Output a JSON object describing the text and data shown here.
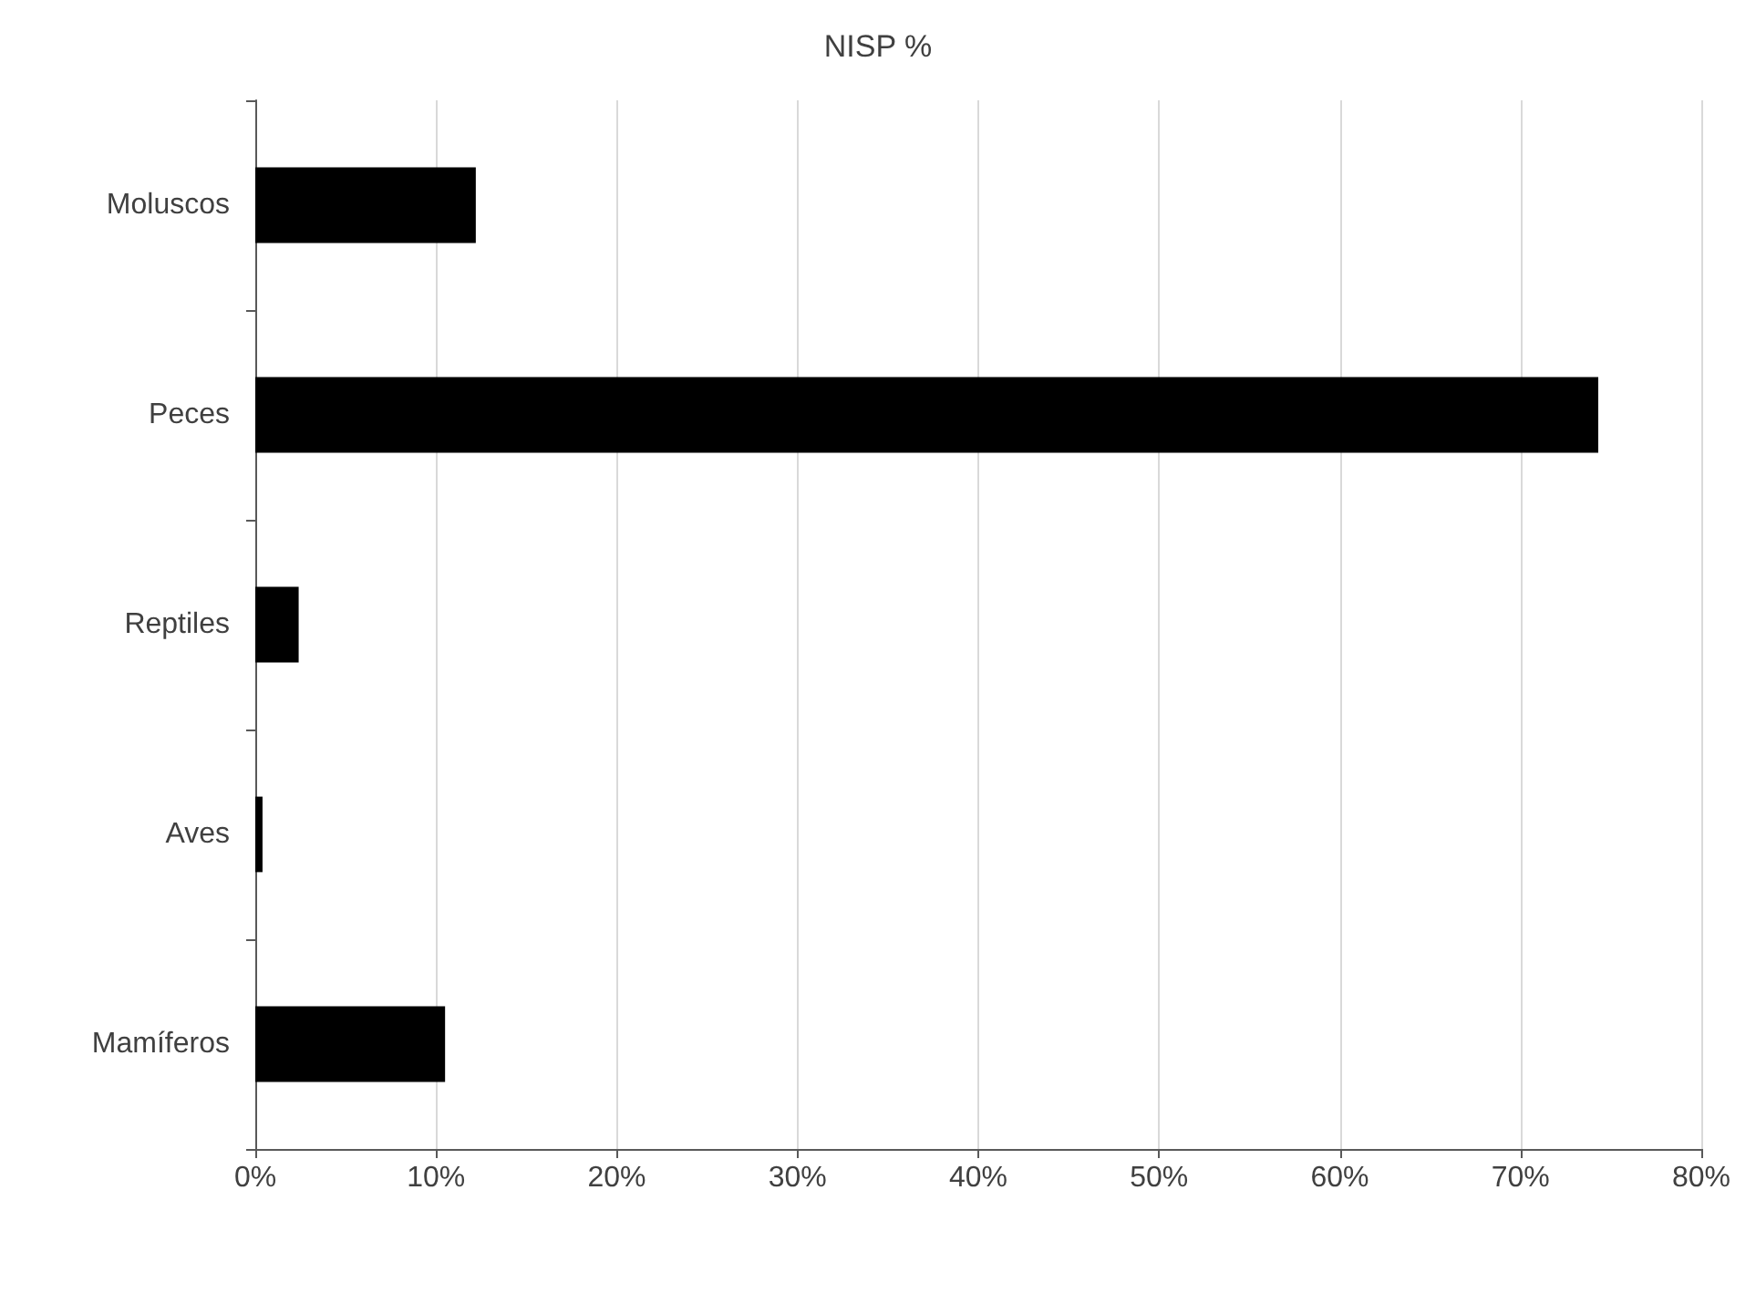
{
  "chart_data": {
    "type": "bar",
    "orientation": "horizontal",
    "title": "NISP %",
    "categories": [
      "Moluscos",
      "Peces",
      "Reptiles",
      "Aves",
      "Mamíferos"
    ],
    "values": [
      12.2,
      74.3,
      2.4,
      0.4,
      10.5
    ],
    "color": "#000000",
    "xlim": [
      0,
      80
    ],
    "xticks": [
      {
        "value": 0,
        "label": "0%"
      },
      {
        "value": 10,
        "label": "10%"
      },
      {
        "value": 20,
        "label": "20%"
      },
      {
        "value": 30,
        "label": "30%"
      },
      {
        "value": 40,
        "label": "40%"
      },
      {
        "value": 50,
        "label": "50%"
      },
      {
        "value": 60,
        "label": "60%"
      },
      {
        "value": 70,
        "label": "70%"
      },
      {
        "value": 80,
        "label": "80%"
      }
    ],
    "grid": "x"
  }
}
